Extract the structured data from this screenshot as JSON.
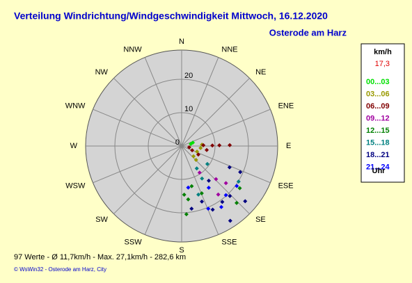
{
  "chart_data": {
    "type": "polar-scatter",
    "title": "Verteilung Windrichtung/Windgeschwindigkeit  Mittwoch, 16.12.2020",
    "subtitle": "Osterode am Harz",
    "categories": [
      "N",
      "NNE",
      "NE",
      "ENE",
      "E",
      "ESE",
      "SE",
      "SSE",
      "S",
      "SSW",
      "SW",
      "WSW",
      "W",
      "WNW",
      "NW",
      "NNW"
    ],
    "rlim": [
      0,
      28.75
    ],
    "rticks": [
      0,
      10,
      20
    ],
    "legend_title": "km/h",
    "current_value": "17,3",
    "legend_footer": "Uhr",
    "series": [
      {
        "name": "00...03",
        "color": "#00e000",
        "directions": [
          73,
          77
        ],
        "values": [
          3.5,
          2.8
        ]
      },
      {
        "name": "03...06",
        "color": "#999900",
        "directions": [
          96,
          110,
          86,
          131,
          134
        ],
        "values": [
          5.7,
          4.9,
          6.1,
          4.7,
          6.0
        ]
      },
      {
        "name": "06...09",
        "color": "#800000",
        "directions": [
          88,
          89,
          89,
          89,
          100,
          112,
          99,
          117
        ],
        "values": [
          6.5,
          9.2,
          11.3,
          14.4,
          2.3,
          3.4,
          7.6,
          5.6
        ]
      },
      {
        "name": "09...12",
        "color": "#a000a0",
        "directions": [
          134,
          130,
          143,
          146
        ],
        "values": [
          14.3,
          17.3,
          18.2,
          9.6
        ]
      },
      {
        "name": "12...15",
        "color": "#008000",
        "directions": [
          177,
          173,
          166,
          126,
          136,
          157,
          176
        ],
        "values": [
          14.6,
          16.1,
          12.4,
          21.5,
          23.7,
          15.4,
          20.5
        ]
      },
      {
        "name": "15...18",
        "color": "#008080",
        "directions": [
          146,
          148,
          122,
          125,
          161
        ],
        "values": [
          8.1,
          11.5,
          20.1,
          9.4,
          15.4
        ]
      },
      {
        "name": "18...21",
        "color": "#000080",
        "directions": [
          114,
          114,
          142,
          136,
          144,
          154,
          160,
          171,
          147,
          131
        ],
        "values": [
          15.7,
          19.2,
          13.2,
          20.8,
          20.7,
          21.2,
          17.7,
          19.0,
          26.7,
          25.2
        ]
      },
      {
        "name": "21...24",
        "color": "#0000ff",
        "directions": [
          171,
          147,
          138,
          126,
          157,
          147
        ],
        "values": [
          12.6,
          14.9,
          19.8,
          20.4,
          20.4,
          21.8
        ]
      }
    ],
    "summary": "97 Werte  -  Ø 11,7km/h  -  Max. 27,1km/h  -  282,6 km",
    "footer": "© WsWin32  -  Osterode am Harz, City"
  }
}
